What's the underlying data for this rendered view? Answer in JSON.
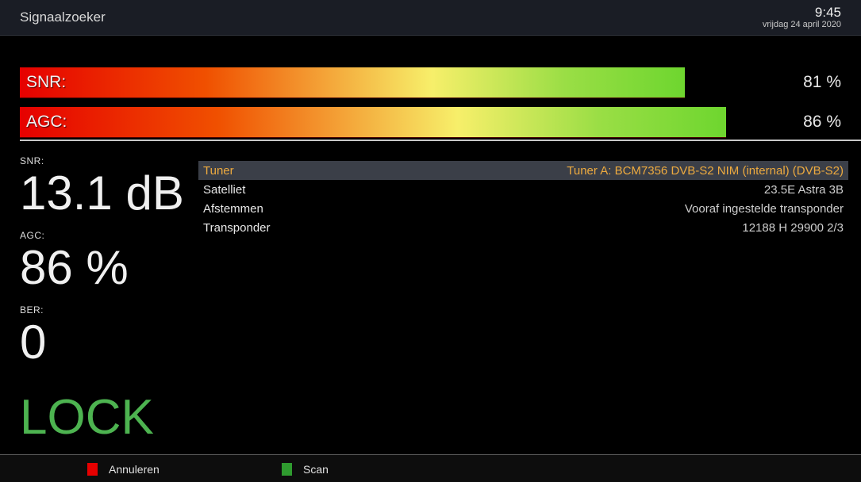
{
  "header": {
    "title": "Signaalzoeker",
    "time": "9:45",
    "date": "vrijdag 24 april 2020"
  },
  "bars": [
    {
      "id": "snr",
      "label": "SNR:",
      "percent": 81,
      "value_text": "81 %"
    },
    {
      "id": "agc",
      "label": "AGC:",
      "percent": 86,
      "value_text": "86 %"
    }
  ],
  "stats": [
    {
      "label": "SNR:",
      "value": "13.1 dB"
    },
    {
      "label": "AGC:",
      "value": "86 %"
    },
    {
      "label": "BER:",
      "value": "0"
    }
  ],
  "lock_status": "LOCK",
  "menu": {
    "rows": [
      {
        "label": "Tuner",
        "value": "Tuner A: BCM7356 DVB-S2 NIM (internal) (DVB-S2)",
        "selected": true
      },
      {
        "label": "Satelliet",
        "value": "23.5E Astra 3B",
        "selected": false
      },
      {
        "label": "Afstemmen",
        "value": "Vooraf ingestelde transponder",
        "selected": false
      },
      {
        "label": "Transponder",
        "value": "12188 H 29900 2/3",
        "selected": false
      }
    ]
  },
  "footer": {
    "buttons": [
      {
        "color_name": "red",
        "color": "#e60000",
        "label": "Annuleren"
      },
      {
        "color_name": "green",
        "color": "#2f9b2f",
        "label": "Scan"
      }
    ]
  },
  "colors": {
    "header_bg": "#1a1d25",
    "body_bg": "#000000",
    "selected_row_bg": "#3b3f48",
    "accent_amber": "#edaa3f",
    "lock_green": "#4db350",
    "bar_gradient": [
      "#e60000",
      "#f05000",
      "#f7ef6a",
      "#6ed62f"
    ],
    "separator_line": "#c8c8c8"
  }
}
